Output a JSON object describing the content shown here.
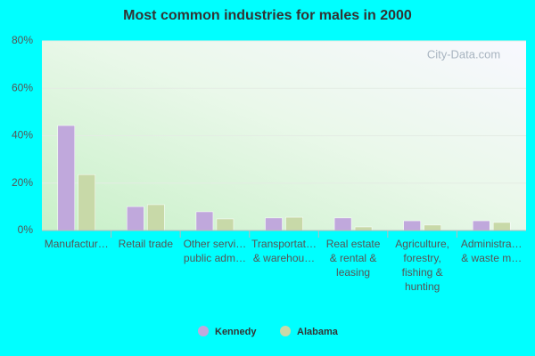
{
  "chart_data": {
    "type": "bar",
    "title": "Most common industries for males in 2000",
    "watermark": "City-Data.com",
    "categories": [
      "Manufactur…",
      "Retail trade",
      "Other servi…\npublic adm…",
      "Transportat…\n& warehou…",
      "Real estate\n& rental &\nleasing",
      "Agriculture,\nforestry,\nfishing &\nhunting",
      "Administra…\n& waste m…"
    ],
    "series": [
      {
        "name": "Kennedy",
        "color": "#c0a8dc",
        "values": [
          44.3,
          10.1,
          7.9,
          5.3,
          5.3,
          4.1,
          4.1
        ]
      },
      {
        "name": "Alabama",
        "color": "#c8d9a8",
        "values": [
          23.6,
          10.9,
          4.9,
          5.6,
          1.5,
          2.3,
          3.4
        ]
      }
    ],
    "ylim": [
      0,
      80
    ],
    "yticks": [
      {
        "value": 0,
        "label": "0%"
      },
      {
        "value": 20,
        "label": "20%"
      },
      {
        "value": 40,
        "label": "40%"
      },
      {
        "value": 60,
        "label": "60%"
      },
      {
        "value": 80,
        "label": "80%"
      }
    ],
    "grid": true
  }
}
